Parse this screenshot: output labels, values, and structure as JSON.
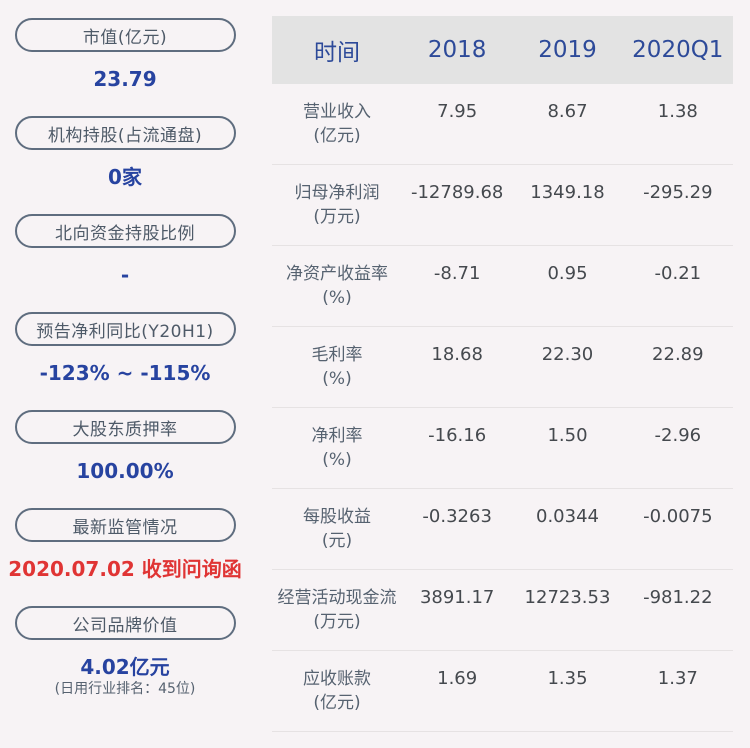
{
  "sidebar": {
    "items": [
      {
        "label": "市值(亿元)",
        "value": "23.79",
        "value_color": "blue"
      },
      {
        "label": "机构持股(占流通盘)",
        "value": "0家",
        "value_color": "blue"
      },
      {
        "label": "北向资金持股比例",
        "value": "-",
        "value_color": "blue"
      },
      {
        "label": "预告净利同比(Y20H1)",
        "value": "-123% ~ -115%",
        "value_color": "blue"
      },
      {
        "label": "大股东质押率",
        "value": "100.00%",
        "value_color": "blue"
      },
      {
        "label": "最新监管情况",
        "value": "2020.07.02 收到问询函",
        "value_color": "red"
      },
      {
        "label": "公司品牌价值",
        "value": "4.02亿元",
        "value_color": "blue",
        "subtitle": "(日用行业排名：45位)"
      }
    ]
  },
  "table": {
    "header": {
      "time_label": "时间",
      "columns": [
        "2018",
        "2019",
        "2020Q1"
      ]
    },
    "rows": [
      {
        "name": "营业收入",
        "unit": "(亿元)",
        "values": [
          "7.95",
          "8.67",
          "1.38"
        ]
      },
      {
        "name": "归母净利润",
        "unit": "(万元)",
        "values": [
          "-12789.68",
          "1349.18",
          "-295.29"
        ]
      },
      {
        "name": "净资产收益率",
        "unit": "(%)",
        "values": [
          "-8.71",
          "0.95",
          "-0.21"
        ]
      },
      {
        "name": "毛利率",
        "unit": "(%)",
        "values": [
          "18.68",
          "22.30",
          "22.89"
        ]
      },
      {
        "name": "净利率",
        "unit": "(%)",
        "values": [
          "-16.16",
          "1.50",
          "-2.96"
        ]
      },
      {
        "name": "每股收益",
        "unit": "(元)",
        "values": [
          "-0.3263",
          "0.0344",
          "-0.0075"
        ]
      },
      {
        "name": "经营活动现金流",
        "unit": "(万元)",
        "values": [
          "3891.17",
          "12723.53",
          "-981.22"
        ]
      },
      {
        "name": "应收账款",
        "unit": "(亿元)",
        "values": [
          "1.69",
          "1.35",
          "1.37"
        ]
      }
    ]
  },
  "colors": {
    "page_background": "#f7f3f5",
    "header_background": "#e3e3e3",
    "header_text_blue": "#2d4a99",
    "value_blue": "#2743a0",
    "alert_red": "#e03434",
    "pill_border": "#5f6d7f",
    "label_slate": "#566270",
    "table_value_gray": "#45494e",
    "separator": "#e6e2e3"
  }
}
